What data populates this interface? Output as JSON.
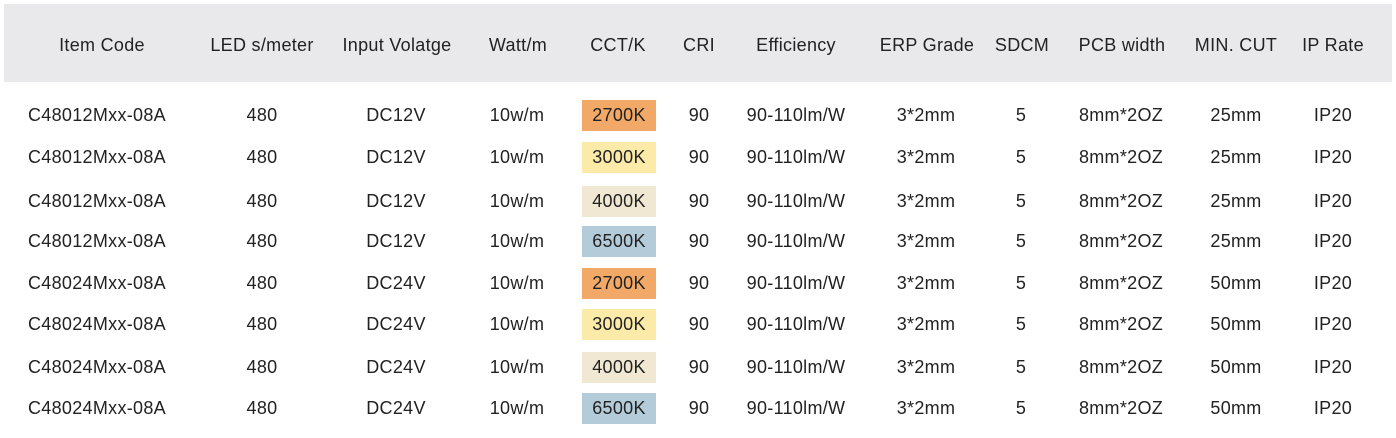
{
  "headers": {
    "item_code": "Item Code",
    "leds_per_meter": "LED s/meter",
    "input_voltage": "Input Volatge",
    "watt": "Watt/m",
    "cct": "CCT/K",
    "cri": "CRI",
    "efficiency": "Efficiency",
    "erp_grade": "ERP Grade",
    "sdcm": "SDCM",
    "pcb_width": "PCB width",
    "min_cut": "MIN. CUT",
    "ip_rate": "IP Rate"
  },
  "cct_colors": {
    "2700K": "#f2a968",
    "3000K": "#fbeaa8",
    "4000K": "#f0e8d2",
    "6500K": "#b4cbd9"
  },
  "rows": [
    {
      "item_code": "C48012Mxx-08A",
      "leds": "480",
      "voltage": "DC12V",
      "watt": "10w/m",
      "cct": "2700K",
      "cri": "90",
      "efficiency": "90-110lm/W",
      "erp": "3*2mm",
      "sdcm": "5",
      "pcb": "8mm*2OZ",
      "min_cut": "25mm",
      "ip": "IP20"
    },
    {
      "item_code": "C48012Mxx-08A",
      "leds": "480",
      "voltage": "DC12V",
      "watt": "10w/m",
      "cct": "3000K",
      "cri": "90",
      "efficiency": "90-110lm/W",
      "erp": "3*2mm",
      "sdcm": "5",
      "pcb": "8mm*2OZ",
      "min_cut": "25mm",
      "ip": "IP20"
    },
    {
      "item_code": "C48012Mxx-08A",
      "leds": "480",
      "voltage": "DC12V",
      "watt": "10w/m",
      "cct": "4000K",
      "cri": "90",
      "efficiency": "90-110lm/W",
      "erp": "3*2mm",
      "sdcm": "5",
      "pcb": "8mm*2OZ",
      "min_cut": "25mm",
      "ip": "IP20"
    },
    {
      "item_code": "C48012Mxx-08A",
      "leds": "480",
      "voltage": "DC12V",
      "watt": "10w/m",
      "cct": "6500K",
      "cri": "90",
      "efficiency": "90-110lm/W",
      "erp": "3*2mm",
      "sdcm": "5",
      "pcb": "8mm*2OZ",
      "min_cut": "25mm",
      "ip": "IP20"
    },
    {
      "item_code": "C48024Mxx-08A",
      "leds": "480",
      "voltage": "DC24V",
      "watt": "10w/m",
      "cct": "2700K",
      "cri": "90",
      "efficiency": "90-110lm/W",
      "erp": "3*2mm",
      "sdcm": "5",
      "pcb": "8mm*2OZ",
      "min_cut": "50mm",
      "ip": "IP20"
    },
    {
      "item_code": "C48024Mxx-08A",
      "leds": "480",
      "voltage": "DC24V",
      "watt": "10w/m",
      "cct": "3000K",
      "cri": "90",
      "efficiency": "90-110lm/W",
      "erp": "3*2mm",
      "sdcm": "5",
      "pcb": "8mm*2OZ",
      "min_cut": "50mm",
      "ip": "IP20"
    },
    {
      "item_code": "C48024Mxx-08A",
      "leds": "480",
      "voltage": "DC24V",
      "watt": "10w/m",
      "cct": "4000K",
      "cri": "90",
      "efficiency": "90-110lm/W",
      "erp": "3*2mm",
      "sdcm": "5",
      "pcb": "8mm*2OZ",
      "min_cut": "50mm",
      "ip": "IP20"
    },
    {
      "item_code": "C48024Mxx-08A",
      "leds": "480",
      "voltage": "DC24V",
      "watt": "10w/m",
      "cct": "6500K",
      "cri": "90",
      "efficiency": "90-110lm/W",
      "erp": "3*2mm",
      "sdcm": "5",
      "pcb": "8mm*2OZ",
      "min_cut": "50mm",
      "ip": "IP20"
    }
  ]
}
